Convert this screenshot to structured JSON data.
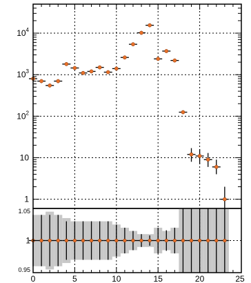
{
  "chart_data": [
    {
      "type": "scatter",
      "panel": "main",
      "title": "",
      "xlabel": "",
      "ylabel": "",
      "yscale": "log",
      "xlim": [
        0,
        25
      ],
      "ylim": [
        0.6,
        50000
      ],
      "grid": true,
      "y_ticks": [
        {
          "value": 1,
          "base": "1",
          "exp": ""
        },
        {
          "value": 10,
          "base": "10",
          "exp": ""
        },
        {
          "value": 100,
          "base": "10",
          "exp": "2"
        },
        {
          "value": 1000,
          "base": "10",
          "exp": "3"
        },
        {
          "value": 10000,
          "base": "10",
          "exp": "4"
        }
      ],
      "series": [
        {
          "marker_color": "#e8712a",
          "x": [
            0,
            1,
            2,
            3,
            4,
            5,
            6,
            7,
            8,
            9,
            10,
            11,
            12,
            13,
            14,
            15,
            16,
            17,
            18,
            19,
            20,
            21,
            22,
            23
          ],
          "y": [
            800,
            700,
            550,
            700,
            1800,
            1450,
            1100,
            1200,
            1500,
            1150,
            1400,
            2600,
            5400,
            10200,
            15500,
            2400,
            3700,
            2200,
            125,
            12,
            11,
            9,
            6,
            1
          ],
          "err_low": [
            80,
            70,
            55,
            70,
            150,
            120,
            100,
            100,
            120,
            100,
            120,
            200,
            400,
            800,
            1200,
            200,
            300,
            200,
            12,
            4,
            4,
            3,
            2,
            0.5
          ],
          "err_high": [
            80,
            70,
            55,
            70,
            150,
            120,
            100,
            100,
            120,
            100,
            120,
            200,
            400,
            800,
            1200,
            200,
            300,
            200,
            12,
            5,
            5,
            4,
            3,
            1
          ]
        }
      ]
    },
    {
      "type": "scatter",
      "panel": "ratio",
      "title": "",
      "xlabel": "",
      "ylabel": "",
      "xlim": [
        0,
        25
      ],
      "ylim": [
        0.95,
        1.05
      ],
      "grid": true,
      "x_ticks": [
        "0",
        "5",
        "10",
        "15",
        "20",
        "25"
      ],
      "y_ticks": [
        "0.95",
        "1",
        "1.05"
      ],
      "series": [
        {
          "marker_color": "#e8712a",
          "x": [
            0,
            1,
            2,
            3,
            4,
            5,
            6,
            7,
            8,
            9,
            10,
            11,
            12,
            13,
            14,
            15,
            16,
            17,
            18,
            19,
            20,
            21,
            22,
            23
          ],
          "y": [
            1,
            1,
            1,
            1,
            1,
            1,
            1,
            1,
            1,
            1,
            1,
            1,
            1,
            1,
            1,
            1,
            1,
            1,
            1,
            1,
            1,
            1,
            1,
            1
          ],
          "band": [
            0.04,
            0.04,
            0.045,
            0.04,
            0.035,
            0.03,
            0.03,
            0.03,
            0.03,
            0.03,
            0.025,
            0.02,
            0.015,
            0.01,
            0.01,
            0.02,
            0.015,
            0.02,
            0.05,
            0.05,
            0.05,
            0.05,
            0.05,
            0.05
          ],
          "err": [
            0.04,
            0.04,
            0.04,
            0.04,
            0.03,
            0.03,
            0.03,
            0.03,
            0.03,
            0.03,
            0.025,
            0.02,
            0.015,
            0.01,
            0.008,
            0.02,
            0.016,
            0.02,
            0.09,
            0.3,
            0.3,
            0.3,
            0.4,
            1.0
          ]
        }
      ]
    }
  ]
}
